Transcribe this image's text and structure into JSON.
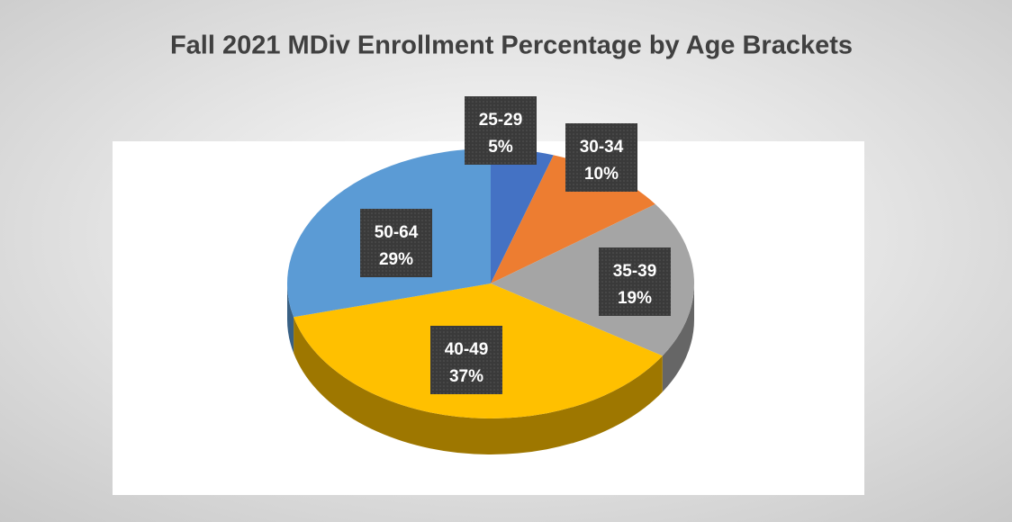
{
  "chart_data": {
    "type": "pie3d",
    "title": "Fall 2021 MDiv Enrollment Percentage by Age Brackets",
    "categories": [
      "25-29",
      "30-34",
      "35-39",
      "40-49",
      "50-64"
    ],
    "values": [
      5,
      10,
      19,
      37,
      29
    ],
    "value_labels": [
      "5%",
      "10%",
      "19%",
      "37%",
      "29%"
    ],
    "colors": [
      "#4472c4",
      "#ed7d31",
      "#a5a5a5",
      "#ffc000",
      "#5b9bd5"
    ]
  }
}
